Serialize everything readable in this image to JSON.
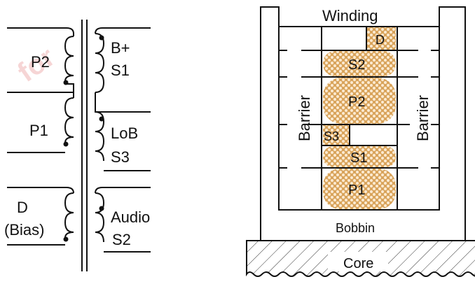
{
  "schematic": {
    "primary_labels": [
      "P2",
      "P1",
      "D",
      "(Bias)"
    ],
    "secondary_labels": [
      "B+",
      "S1",
      "LoB",
      "S3",
      "Audio",
      "S2"
    ]
  },
  "cross_section": {
    "title": "Winding",
    "barrier_left": "Barrier",
    "barrier_right": "Barrier",
    "bobbin": "Bobbin",
    "core": "Core",
    "windings": [
      "D",
      "S2",
      "P2",
      "S3",
      "S1",
      "P1"
    ]
  },
  "watermark": "for",
  "colors": {
    "winding_fill": "#d9a45c",
    "winding_dot": "#ffffff",
    "line": "#111111"
  }
}
